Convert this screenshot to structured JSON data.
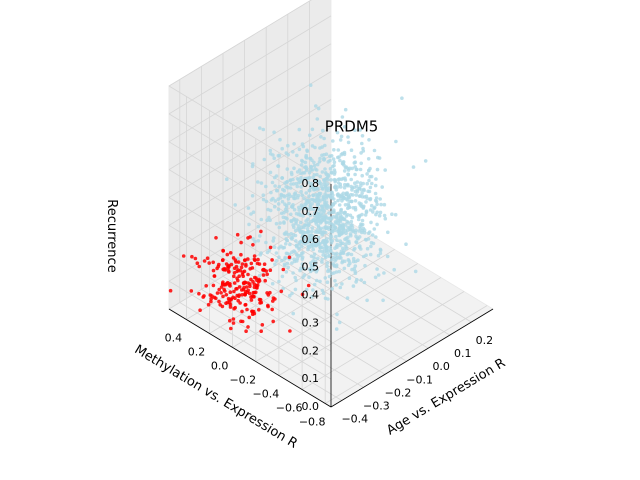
{
  "chart_data": {
    "type": "scatter",
    "projection": "3d",
    "x_axis": {
      "label": "Age vs. Expression R",
      "range": [
        -0.45,
        0.3
      ],
      "ticks": [
        "−0.4",
        "−0.3",
        "−0.2",
        "−0.1",
        "0.0",
        "0.1",
        "0.2"
      ],
      "tick_values": [
        -0.4,
        -0.3,
        -0.2,
        -0.1,
        0.0,
        0.1,
        0.2
      ]
    },
    "y_axis": {
      "label": "Methylation vs. Expression R",
      "range": [
        -0.85,
        0.55
      ],
      "ticks": [
        "−0.8",
        "−0.6",
        "−0.4",
        "−0.2",
        "0.0",
        "0.2",
        "0.4"
      ],
      "tick_values": [
        -0.8,
        -0.6,
        -0.4,
        -0.2,
        0.0,
        0.2,
        0.4
      ]
    },
    "z_axis": {
      "label": "Recurrence",
      "range": [
        0,
        0.8
      ],
      "ticks": [
        "0.0",
        "0.1",
        "0.2",
        "0.3",
        "0.4",
        "0.5",
        "0.6",
        "0.7",
        "0.8"
      ],
      "tick_values": [
        0.0,
        0.1,
        0.2,
        0.3,
        0.4,
        0.5,
        0.6,
        0.7,
        0.8
      ]
    },
    "grid": true,
    "series": [
      {
        "color": "#add8e6",
        "count": 1100,
        "center": {
          "x": -0.05,
          "y": -0.05,
          "z": 0.3
        },
        "spread": {
          "x": 0.1,
          "y": 0.17,
          "z": 0.12
        }
      },
      {
        "color": "#ff0000",
        "count": 230,
        "center": {
          "x": -0.28,
          "y": 0.25,
          "z": 0.08
        },
        "spread": {
          "x": 0.06,
          "y": 0.15,
          "z": 0.06
        }
      }
    ],
    "annotations": [
      {
        "text": "PRDM5",
        "x": -0.05,
        "y": -0.05,
        "z": 0.6
      }
    ]
  }
}
